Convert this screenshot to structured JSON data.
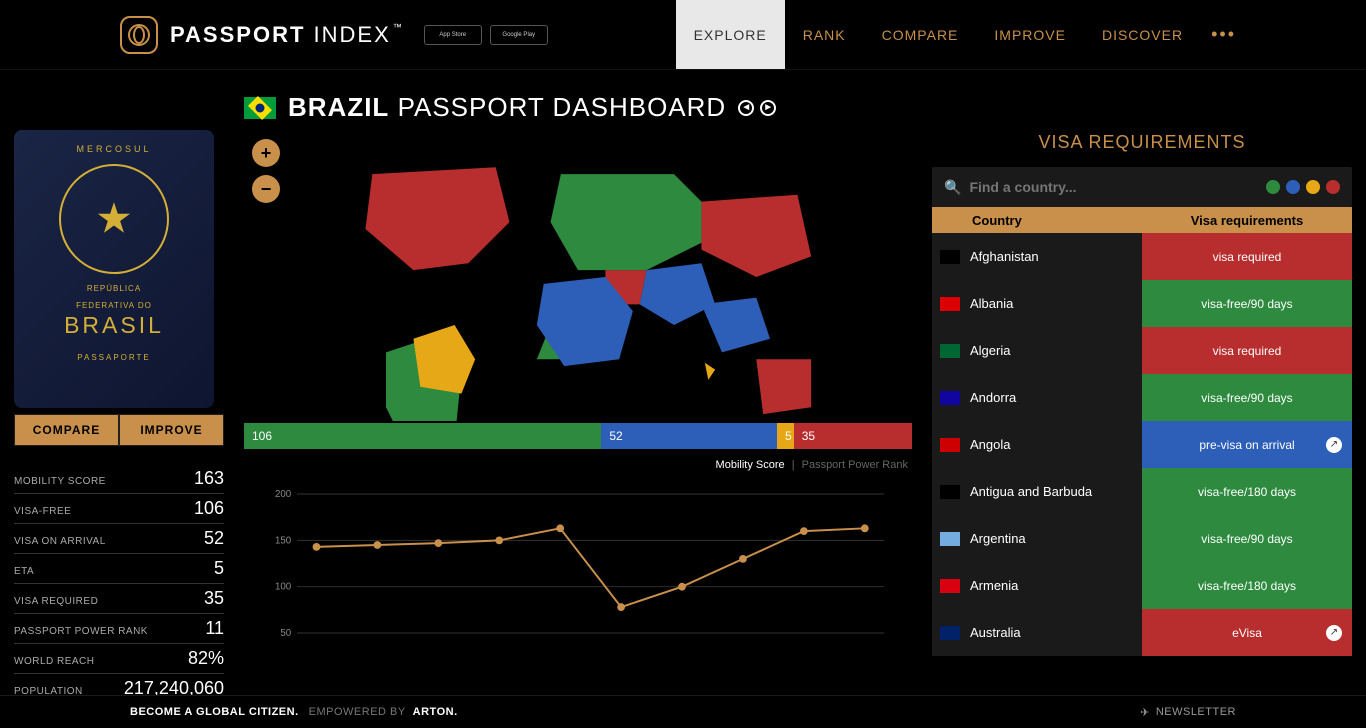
{
  "brand": {
    "bold": "PASSPORT",
    "light": "INDEX",
    "tm": "™"
  },
  "store": {
    "apple": "App Store",
    "google": "Google Play"
  },
  "nav": {
    "items": [
      "EXPLORE",
      "RANK",
      "COMPARE",
      "IMPROVE",
      "DISCOVER"
    ],
    "active_index": 0
  },
  "title": {
    "country": "BRAZIL",
    "suffix": "PASSPORT DASHBOARD"
  },
  "passport": {
    "mercosul": "MERCOSUL",
    "republica": "REPÚBLICA",
    "federativa": "FEDERATIVA DO",
    "brasil": "BRASIL",
    "passaporte": "PASSAPORTE"
  },
  "side_buttons": {
    "compare": "COMPARE",
    "improve": "IMPROVE"
  },
  "stats": [
    {
      "label": "MOBILITY SCORE",
      "value": "163"
    },
    {
      "label": "VISA-FREE",
      "value": "106"
    },
    {
      "label": "VISA ON ARRIVAL",
      "value": "52"
    },
    {
      "label": "ETA",
      "value": "5"
    },
    {
      "label": "VISA REQUIRED",
      "value": "35"
    },
    {
      "label": "PASSPORT POWER RANK",
      "value": "11"
    },
    {
      "label": "WORLD REACH",
      "value": "82%"
    },
    {
      "label": "POPULATION",
      "value": "217,240,060"
    }
  ],
  "colors": {
    "green": "#2d8a3e",
    "blue": "#2d5fb8",
    "amber": "#e6a817",
    "red": "#b82d2d",
    "accent": "#c8904a",
    "bg": "#000000",
    "line": "#c8904a"
  },
  "segments": [
    {
      "value": 106,
      "color": "#2d8a3e",
      "width_pct": 53.5
    },
    {
      "value": 52,
      "color": "#2d5fb8",
      "width_pct": 26.3
    },
    {
      "value": 5,
      "color": "#e6a817",
      "width_pct": 2.5
    },
    {
      "value": 35,
      "color": "#b82d2d",
      "width_pct": 17.7
    }
  ],
  "chart": {
    "label_mobility": "Mobility Score",
    "label_ppr": "Passport Power Rank",
    "y_ticks": [
      50,
      100,
      150,
      200
    ],
    "ylim": [
      40,
      210
    ],
    "points": [
      143,
      145,
      147,
      150,
      163,
      78,
      100,
      130,
      160,
      163
    ],
    "line_color": "#c8904a",
    "marker_color": "#c8904a",
    "grid_color": "#333333",
    "axis_color": "#888888",
    "label_fontsize": 10
  },
  "right": {
    "title": "VISA REQUIREMENTS",
    "search_placeholder": "Find a country...",
    "filter_dots": [
      "#2d8a3e",
      "#2d5fb8",
      "#e6a817",
      "#b82d2d"
    ],
    "th_country": "Country",
    "th_req": "Visa requirements"
  },
  "visa_rows": [
    {
      "country": "Afghanistan",
      "req": "visa required",
      "color": "#b82d2d",
      "flag": "#000"
    },
    {
      "country": "Albania",
      "req": "visa-free/90 days",
      "color": "#2d8a3e",
      "flag": "#d00"
    },
    {
      "country": "Algeria",
      "req": "visa required",
      "color": "#b82d2d",
      "flag": "#063"
    },
    {
      "country": "Andorra",
      "req": "visa-free/90 days",
      "color": "#2d8a3e",
      "flag": "#10069f"
    },
    {
      "country": "Angola",
      "req": "pre-visa on arrival",
      "color": "#2d5fb8",
      "flag": "#c00",
      "link": true
    },
    {
      "country": "Antigua and Barbuda",
      "req": "visa-free/180 days",
      "color": "#2d8a3e",
      "flag": "#000"
    },
    {
      "country": "Argentina",
      "req": "visa-free/90 days",
      "color": "#2d8a3e",
      "flag": "#74acdf"
    },
    {
      "country": "Armenia",
      "req": "visa-free/180 days",
      "color": "#2d8a3e",
      "flag": "#d90012"
    },
    {
      "country": "Australia",
      "req": "eVisa",
      "color": "#b82d2d",
      "flag": "#012169",
      "link": true
    }
  ],
  "footer": {
    "global_citizen": "BECOME A GLOBAL CITIZEN.",
    "empowered": "EMPOWERED BY",
    "arton": "ARTON.",
    "newsletter": "NEWSLETTER"
  },
  "map": {
    "green": [
      "M355,60 L520,60 L560,100 L560,160 L480,200 L380,200 L340,130 Z",
      "M100,320 L160,300 L210,350 L200,450 L140,480 L100,400 Z",
      "M340,280 L370,290 L360,330 L320,330 Z"
    ],
    "blue": [
      "M330,220 L420,210 L460,260 L440,330 L360,340 L320,280 Z",
      "M480,200 L560,190 L580,250 L520,280 L470,250 Z",
      "M560,250 L640,240 L660,300 L590,320 Z"
    ],
    "red": [
      "M80,60 L260,50 L280,130 L220,190 L140,200 L70,140 Z",
      "M560,100 L700,90 L720,180 L640,210 L560,170 Z",
      "M420,200 L480,200 L470,250 L420,250 Z",
      "M640,330 L720,330 L720,400 L650,410 Z"
    ],
    "amber": [
      "M140,300 L200,280 L230,330 L210,380 L150,370 Z",
      "M565,335 L580,345 L570,360 Z"
    ]
  }
}
